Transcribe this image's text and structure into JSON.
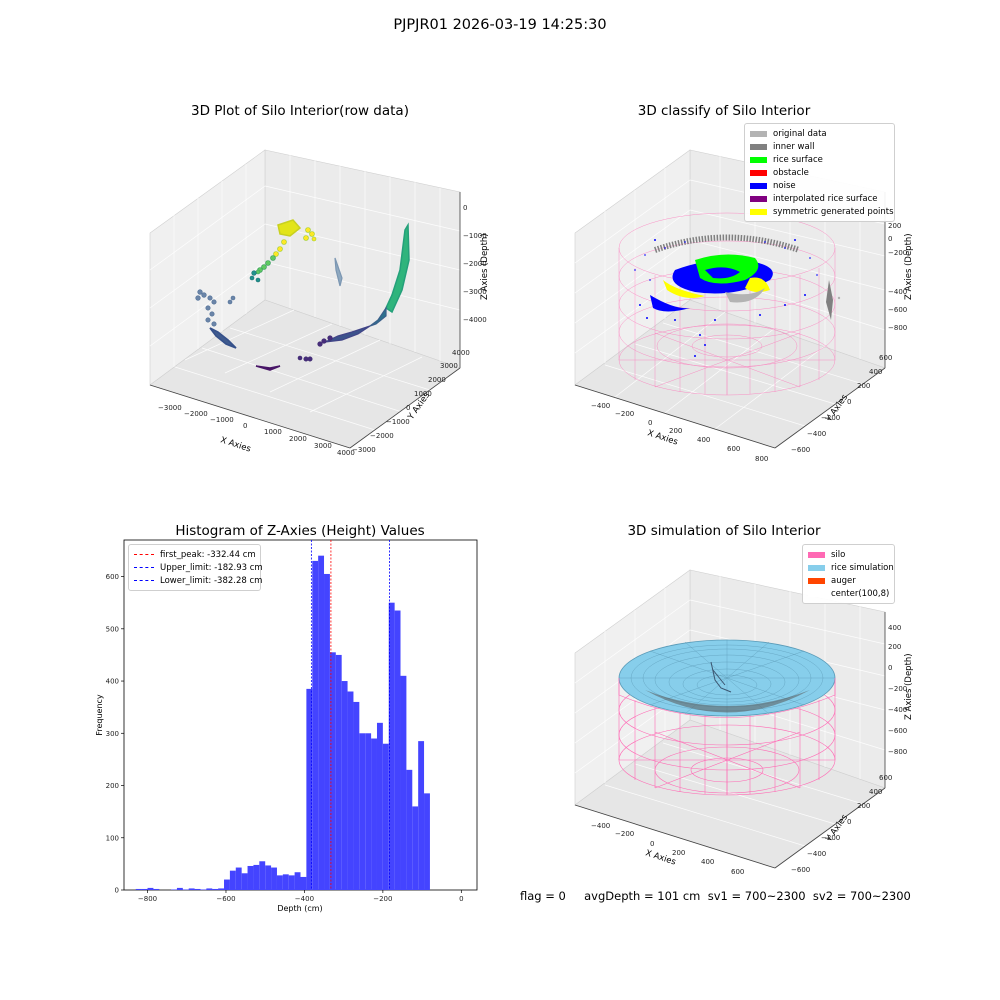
{
  "figure": {
    "suptitle": "PJPJR01 2026-03-19 14:25:30",
    "footer": "flag = 0     avgDepth = 101 cm  sv1 = 700~2300  sv2 = 700~2300"
  },
  "panels": {
    "raw": {
      "title": "3D Plot of Silo Interior(row data)",
      "xlabel": "X Axies",
      "ylabel": "Y Axies",
      "zlabel": "Z Axies (Depth)",
      "xticks": [
        "−3000",
        "−2000",
        "−1000",
        "0",
        "1000",
        "2000",
        "3000",
        "4000"
      ],
      "yticks": [
        "−3000",
        "−2000",
        "−1000",
        "0",
        "1000",
        "2000",
        "3000",
        "4000"
      ],
      "zticks": [
        "−4000",
        "−3000",
        "−2000",
        "−1000",
        "0"
      ]
    },
    "classify": {
      "title": "3D classify of Silo Interior",
      "xlabel": "X Axies",
      "ylabel": "Y Axies",
      "zlabel": "Z Axies (Depth)",
      "xticks": [
        "−400",
        "−200",
        "0",
        "200",
        "400",
        "600",
        "800"
      ],
      "yticks": [
        "−600",
        "−400",
        "−200",
        "0",
        "200",
        "400",
        "600"
      ],
      "zticks": [
        "−800",
        "−600",
        "−400",
        "−200",
        "0",
        "200"
      ],
      "legend": [
        {
          "label": "original data",
          "color": "#b3b3b3"
        },
        {
          "label": "inner wall",
          "color": "#808080"
        },
        {
          "label": "rice surface",
          "color": "#00ff00"
        },
        {
          "label": "obstacle",
          "color": "#ff0000"
        },
        {
          "label": "noise",
          "color": "#0000ff"
        },
        {
          "label": "interpolated rice surface",
          "color": "#800080"
        },
        {
          "label": "symmetric generated points",
          "color": "#ffff00"
        }
      ]
    },
    "simulation": {
      "title": "3D simulation of Silo Interior",
      "xlabel": "X Axies",
      "ylabel": "Y Axies",
      "zlabel": "Z Axies (Depth)",
      "xticks": [
        "−400",
        "−200",
        "0",
        "200",
        "400",
        "600"
      ],
      "yticks": [
        "−600",
        "−400",
        "−200",
        "0",
        "200",
        "400",
        "600"
      ],
      "zticks": [
        "−800",
        "−600",
        "−400",
        "−200",
        "0",
        "200",
        "400"
      ],
      "legend": [
        {
          "label": "silo",
          "color": "#ff69b4"
        },
        {
          "label": "rice simulation",
          "color": "#87ceeb"
        },
        {
          "label": "auger",
          "color": "#ff4500"
        },
        {
          "label": "center(100,8)",
          "color": "#ffffff"
        }
      ]
    }
  },
  "colors": {
    "hist_bar": "#4444ff",
    "peak_line": "#ff0000",
    "limit_line": "#0000ff",
    "silo_pink": "#ff69b4",
    "rice_blue": "#87ceeb"
  },
  "chart_data": [
    {
      "type": "bar",
      "title": "Histogram of Z-Axies (Height) Values",
      "xlabel": "Depth (cm)",
      "ylabel": "Frequency",
      "xlim": [
        -860,
        40
      ],
      "ylim": [
        0,
        670
      ],
      "xticks": [
        -800,
        -600,
        -400,
        -200,
        0
      ],
      "yticks": [
        0,
        100,
        200,
        300,
        400,
        500,
        600
      ],
      "bin_width": 15,
      "bins": [
        {
          "x": -830,
          "count": 2
        },
        {
          "x": -815,
          "count": 2
        },
        {
          "x": -800,
          "count": 4
        },
        {
          "x": -785,
          "count": 2
        },
        {
          "x": -770,
          "count": 0
        },
        {
          "x": -755,
          "count": 0
        },
        {
          "x": -740,
          "count": 1
        },
        {
          "x": -725,
          "count": 4
        },
        {
          "x": -710,
          "count": 1
        },
        {
          "x": -695,
          "count": 3
        },
        {
          "x": -680,
          "count": 2
        },
        {
          "x": -665,
          "count": 1
        },
        {
          "x": -650,
          "count": 3
        },
        {
          "x": -635,
          "count": 2
        },
        {
          "x": -620,
          "count": 3
        },
        {
          "x": -605,
          "count": 20
        },
        {
          "x": -590,
          "count": 37
        },
        {
          "x": -575,
          "count": 43
        },
        {
          "x": -560,
          "count": 32
        },
        {
          "x": -545,
          "count": 46
        },
        {
          "x": -530,
          "count": 48
        },
        {
          "x": -515,
          "count": 55
        },
        {
          "x": -500,
          "count": 47
        },
        {
          "x": -485,
          "count": 43
        },
        {
          "x": -470,
          "count": 28
        },
        {
          "x": -455,
          "count": 30
        },
        {
          "x": -440,
          "count": 28
        },
        {
          "x": -425,
          "count": 34
        },
        {
          "x": -410,
          "count": 25
        },
        {
          "x": -395,
          "count": 385
        },
        {
          "x": -380,
          "count": 630
        },
        {
          "x": -365,
          "count": 640
        },
        {
          "x": -350,
          "count": 605
        },
        {
          "x": -335,
          "count": 455
        },
        {
          "x": -320,
          "count": 450
        },
        {
          "x": -305,
          "count": 400
        },
        {
          "x": -290,
          "count": 380
        },
        {
          "x": -275,
          "count": 360
        },
        {
          "x": -260,
          "count": 300
        },
        {
          "x": -245,
          "count": 300
        },
        {
          "x": -230,
          "count": 290
        },
        {
          "x": -215,
          "count": 320
        },
        {
          "x": -200,
          "count": 280
        },
        {
          "x": -185,
          "count": 550
        },
        {
          "x": -170,
          "count": 535
        },
        {
          "x": -155,
          "count": 410
        },
        {
          "x": -140,
          "count": 230
        },
        {
          "x": -125,
          "count": 160
        },
        {
          "x": -110,
          "count": 285
        },
        {
          "x": -95,
          "count": 185
        }
      ],
      "vlines": [
        {
          "label": "first_peak: -332.44 cm",
          "x": -332.44,
          "color": "#ff0000"
        },
        {
          "label": "Upper_limit: -182.93 cm",
          "x": -182.93,
          "color": "#0000ff"
        },
        {
          "label": "Lower_limit: -382.28 cm",
          "x": -382.28,
          "color": "#0000ff"
        }
      ]
    }
  ]
}
